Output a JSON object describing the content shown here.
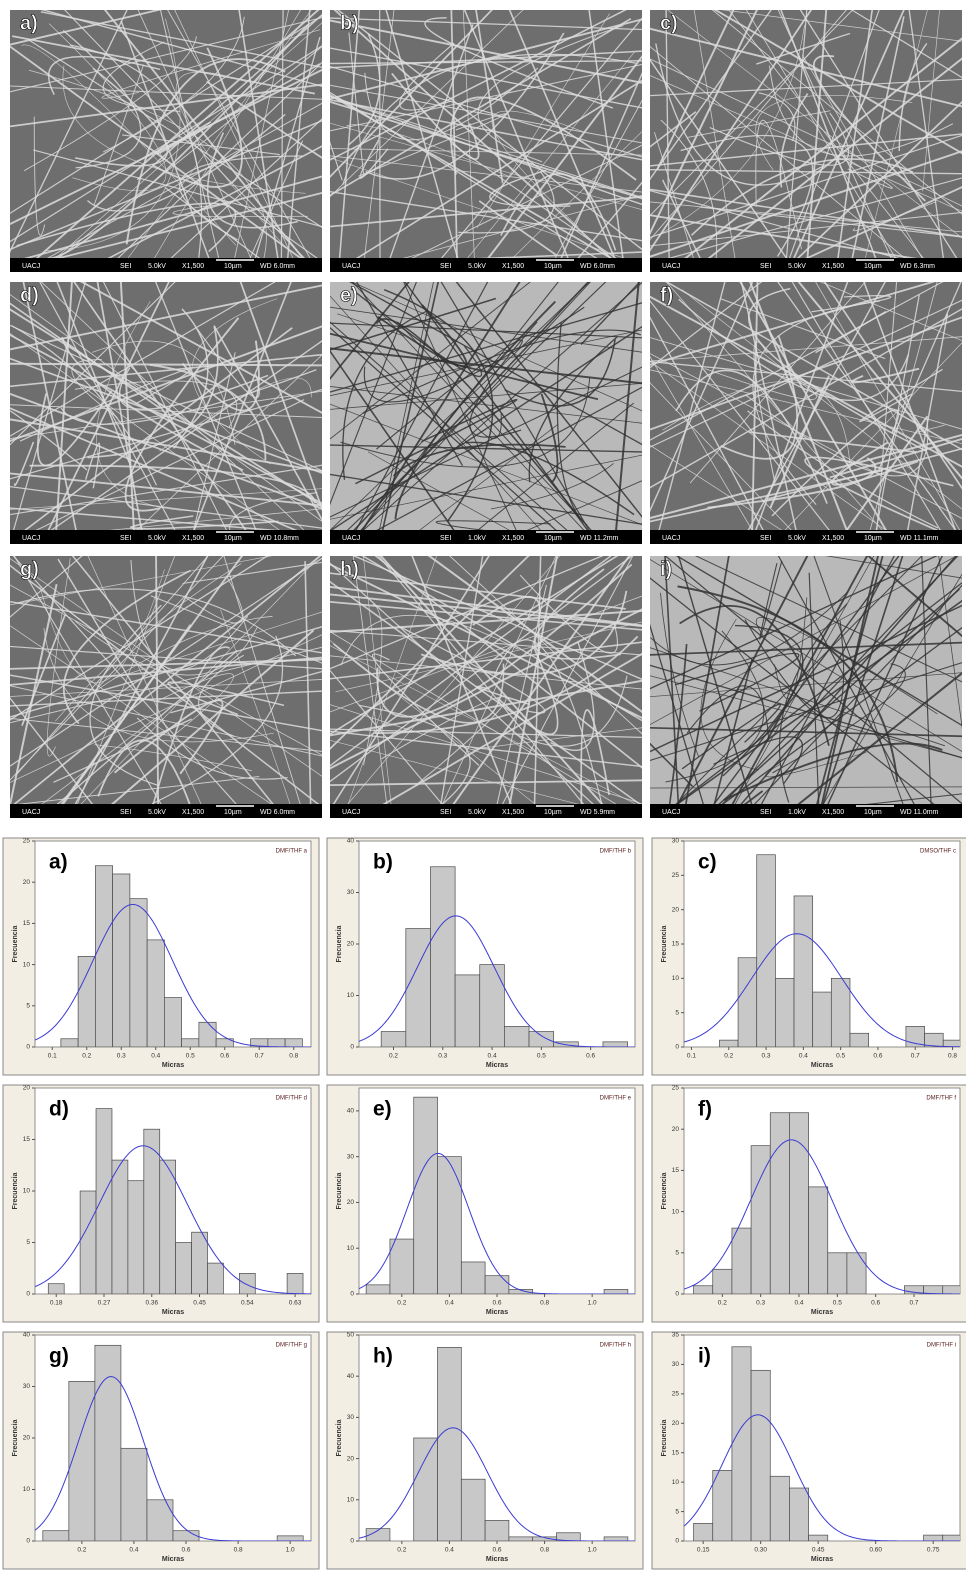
{
  "sem_panels": [
    {
      "label": "a)",
      "footer": [
        "UACJ",
        "SEI",
        "5.0kV",
        "X1,500",
        "10µm",
        "WD 6.0mm"
      ]
    },
    {
      "label": "b)",
      "footer": [
        "UACJ",
        "SEI",
        "5.0kV",
        "X1,500",
        "10µm",
        "WD 6.0mm"
      ]
    },
    {
      "label": "c)",
      "footer": [
        "UACJ",
        "SEI",
        "5.0kV",
        "X1,500",
        "10µm",
        "WD 6.3mm"
      ]
    },
    {
      "label": "d)",
      "footer": [
        "UACJ",
        "SEI",
        "5.0kV",
        "X1,500",
        "10µm",
        "WD 10.8mm"
      ]
    },
    {
      "label": "e)",
      "footer": [
        "UACJ",
        "SEI",
        "1.0kV",
        "X1,500",
        "10µm",
        "WD 11.2mm"
      ]
    },
    {
      "label": "f)",
      "footer": [
        "UACJ",
        "SEI",
        "5.0kV",
        "X1,500",
        "10µm",
        "WD 11.1mm"
      ]
    },
    {
      "label": "g)",
      "footer": [
        "UACJ",
        "SEI",
        "5.0kV",
        "X1,500",
        "10µm",
        "WD 6.0mm"
      ]
    },
    {
      "label": "h)",
      "footer": [
        "UACJ",
        "SEI",
        "5.0kV",
        "X1,500",
        "10µm",
        "WD 5.9mm"
      ]
    },
    {
      "label": "i)",
      "footer": [
        "UACJ",
        "SEI",
        "1.0kV",
        "X1,500",
        "10µm",
        "WD 11.0mm"
      ]
    }
  ],
  "chart_data": [
    {
      "type": "histogram",
      "panel_label": "a)",
      "legend": "DMF/THF a",
      "xlabel": "Micras",
      "ylabel": "Frecuencia",
      "color": "#c8c8c8",
      "fit_color": "#3b3bd4",
      "bins": [
        0.125,
        0.175,
        0.225,
        0.275,
        0.325,
        0.375,
        0.425,
        0.475,
        0.525,
        0.575,
        0.625,
        0.675,
        0.725,
        0.775,
        0.825
      ],
      "values": [
        1,
        11,
        22,
        21,
        18,
        13,
        6,
        1,
        3,
        1,
        0,
        1,
        1,
        1
      ],
      "xlim": [
        0.05,
        0.85
      ],
      "xticks": [
        0.1,
        0.2,
        0.3,
        0.4,
        0.5,
        0.6,
        0.7,
        0.8
      ],
      "ylim": [
        0,
        25
      ],
      "yticks": [
        0,
        5,
        10,
        15,
        20,
        25
      ]
    },
    {
      "type": "histogram",
      "panel_label": "b)",
      "legend": "DMF/THF b",
      "xlabel": "Micras",
      "ylabel": "Frecuencia",
      "color": "#c8c8c8",
      "fit_color": "#3b3bd4",
      "bins": [
        0.175,
        0.225,
        0.275,
        0.325,
        0.375,
        0.425,
        0.475,
        0.525,
        0.575,
        0.625,
        0.675
      ],
      "values": [
        3,
        23,
        35,
        14,
        16,
        4,
        3,
        1,
        0,
        1
      ],
      "xlim": [
        0.13,
        0.69
      ],
      "xticks": [
        0.2,
        0.3,
        0.4,
        0.5,
        0.6
      ],
      "ylim": [
        0,
        40
      ],
      "yticks": [
        0,
        10,
        20,
        30,
        40
      ]
    },
    {
      "type": "histogram",
      "panel_label": "c)",
      "legend": "DMSO/THF c",
      "xlabel": "Micras",
      "ylabel": "Frecuencia",
      "color": "#c8c8c8",
      "fit_color": "#3b3bd4",
      "bins": [
        0.175,
        0.225,
        0.275,
        0.325,
        0.375,
        0.425,
        0.475,
        0.525,
        0.575,
        0.625,
        0.675,
        0.725,
        0.775,
        0.825
      ],
      "values": [
        1,
        13,
        28,
        10,
        22,
        8,
        10,
        2,
        0,
        0,
        3,
        2,
        1
      ],
      "xlim": [
        0.08,
        0.82
      ],
      "xticks": [
        0.1,
        0.2,
        0.3,
        0.4,
        0.5,
        0.6,
        0.7,
        0.8
      ],
      "ylim": [
        0,
        30
      ],
      "yticks": [
        0,
        5,
        10,
        15,
        20,
        25,
        30
      ]
    },
    {
      "type": "histogram",
      "panel_label": "d)",
      "legend": "DMF/THF d",
      "xlabel": "Micras",
      "ylabel": "Frecuencia",
      "color": "#c8c8c8",
      "fit_color": "#3b3bd4",
      "bins": [
        0.165,
        0.195,
        0.225,
        0.255,
        0.285,
        0.315,
        0.345,
        0.375,
        0.405,
        0.435,
        0.465,
        0.495,
        0.525,
        0.555,
        0.585,
        0.615,
        0.645
      ],
      "values": [
        1,
        0,
        10,
        18,
        13,
        11,
        16,
        13,
        5,
        6,
        3,
        0,
        2,
        0,
        0,
        2
      ],
      "xlim": [
        0.14,
        0.66
      ],
      "xticks": [
        0.18,
        0.27,
        0.36,
        0.45,
        0.54,
        0.63
      ],
      "ylim": [
        0,
        20
      ],
      "yticks": [
        0,
        5,
        10,
        15,
        20
      ]
    },
    {
      "type": "histogram",
      "panel_label": "e)",
      "legend": "DMF/THF e",
      "xlabel": "Micras",
      "ylabel": "Frecuencia",
      "color": "#c8c8c8",
      "fit_color": "#3b3bd4",
      "bins": [
        0.05,
        0.15,
        0.25,
        0.35,
        0.45,
        0.55,
        0.65,
        0.75,
        0.85,
        0.95,
        1.05,
        1.15
      ],
      "values": [
        2,
        12,
        43,
        30,
        7,
        4,
        1,
        0,
        0,
        0,
        1
      ],
      "xlim": [
        0.02,
        1.18
      ],
      "xticks": [
        0.2,
        0.4,
        0.6,
        0.8,
        {
          "value": 1,
          "label": "1.0"
        }
      ],
      "ylim": [
        0,
        45
      ],
      "yticks": [
        0,
        10,
        20,
        30,
        40
      ]
    },
    {
      "type": "histogram",
      "panel_label": "f)",
      "legend": "DMF/THF f",
      "xlabel": "Micras",
      "ylabel": "Frecuencia",
      "color": "#c8c8c8",
      "fit_color": "#3b3bd4",
      "bins": [
        0.125,
        0.175,
        0.225,
        0.275,
        0.325,
        0.375,
        0.425,
        0.475,
        0.525,
        0.575,
        0.625,
        0.675,
        0.725,
        0.775,
        0.825
      ],
      "values": [
        1,
        3,
        8,
        18,
        22,
        22,
        13,
        5,
        5,
        0,
        0,
        1,
        1,
        1
      ],
      "xlim": [
        0.1,
        0.82
      ],
      "xticks": [
        0.2,
        0.3,
        0.4,
        0.5,
        0.6,
        0.7
      ],
      "ylim": [
        0,
        25
      ],
      "yticks": [
        0,
        5,
        10,
        15,
        20,
        25
      ]
    },
    {
      "type": "histogram",
      "panel_label": "g)",
      "legend": "DMF/THF g",
      "xlabel": "Micras",
      "ylabel": "Frecuencia",
      "color": "#c8c8c8",
      "fit_color": "#3b3bd4",
      "bins": [
        0.05,
        0.15,
        0.25,
        0.35,
        0.45,
        0.55,
        0.65,
        0.75,
        0.85,
        0.95,
        1.05
      ],
      "values": [
        2,
        31,
        38,
        18,
        8,
        2,
        0,
        0,
        0,
        1
      ],
      "xlim": [
        0.02,
        1.08
      ],
      "xticks": [
        0.2,
        0.4,
        0.6,
        0.8,
        {
          "value": 1,
          "label": "1.0"
        }
      ],
      "ylim": [
        0,
        40
      ],
      "yticks": [
        0,
        10,
        20,
        30,
        40
      ]
    },
    {
      "type": "histogram",
      "panel_label": "h)",
      "legend": "DMF/THF h",
      "xlabel": "Micras",
      "ylabel": "Frecuencia",
      "color": "#c8c8c8",
      "fit_color": "#3b3bd4",
      "bins": [
        0.05,
        0.15,
        0.25,
        0.35,
        0.45,
        0.55,
        0.65,
        0.75,
        0.85,
        0.95,
        1.05,
        1.15
      ],
      "values": [
        3,
        0,
        25,
        47,
        15,
        5,
        1,
        1,
        2,
        0,
        1
      ],
      "xlim": [
        0.02,
        1.18
      ],
      "xticks": [
        0.2,
        0.4,
        0.6,
        0.8,
        {
          "value": 1,
          "label": "1.0"
        }
      ],
      "ylim": [
        0,
        50
      ],
      "yticks": [
        0,
        10,
        20,
        30,
        40,
        50
      ]
    },
    {
      "type": "histogram",
      "panel_label": "i)",
      "legend": "DMF/THF i",
      "xlabel": "Micras",
      "ylabel": "Frecuencia",
      "color": "#c8c8c8",
      "fit_color": "#3b3bd4",
      "bins": [
        0.125,
        0.175,
        0.225,
        0.275,
        0.325,
        0.375,
        0.425,
        0.475,
        0.525,
        0.575,
        0.625,
        0.675,
        0.725,
        0.775,
        0.825
      ],
      "values": [
        3,
        12,
        33,
        29,
        11,
        9,
        1,
        0,
        0,
        0,
        0,
        0,
        1,
        1
      ],
      "xlim": [
        0.1,
        0.82
      ],
      "xticks": [
        0.15,
        {
          "value": 0.3,
          "label": "0.30"
        },
        0.45,
        {
          "value": 0.6,
          "label": "0.60"
        },
        0.75
      ],
      "ylim": [
        0,
        35
      ],
      "yticks": [
        0,
        5,
        10,
        15,
        20,
        25,
        30,
        35
      ]
    }
  ]
}
